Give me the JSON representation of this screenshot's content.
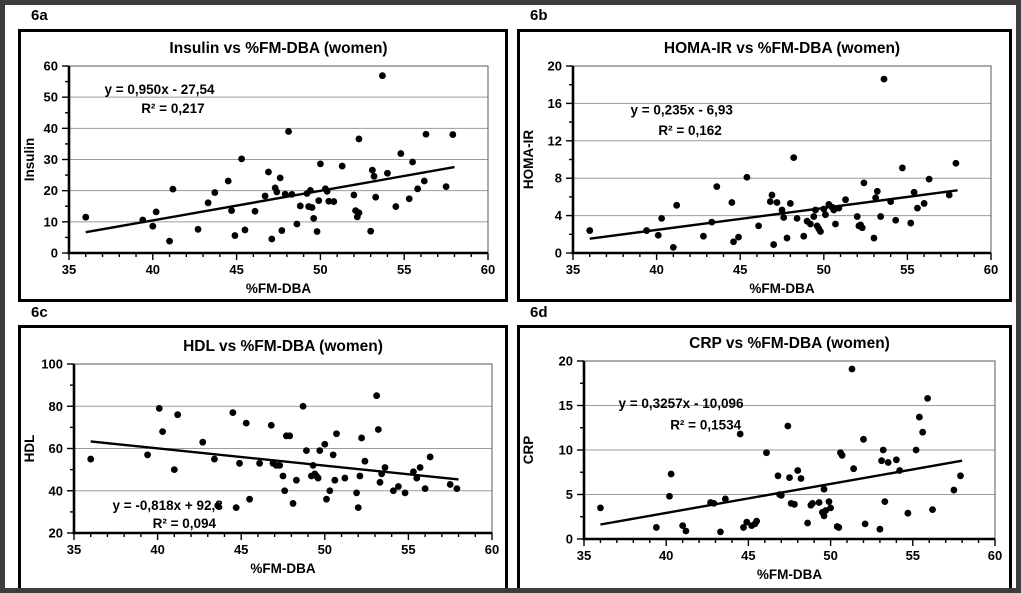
{
  "figure_name": "6",
  "chart_data": [
    {
      "type": "scatter",
      "panel_label": "6a",
      "title": "Insulin vs %FM-DBA (women)",
      "xlabel": "%FM-DBA",
      "ylabel": "Insulin",
      "xlim": [
        35,
        60
      ],
      "ylim": [
        0,
        60
      ],
      "xticks": [
        35,
        40,
        45,
        50,
        55,
        60
      ],
      "yticks": [
        0,
        10,
        20,
        30,
        40,
        50,
        60
      ],
      "x_minor_step": 1,
      "y_minor_step": 5,
      "trend": {
        "slope": 0.95,
        "intercept": -27.54,
        "x_start": 36,
        "x_end": 58
      },
      "annotations": [
        {
          "text": "y = 0,950x - 27,54",
          "x": 40.4,
          "y": 52.5
        },
        {
          "text": "R² = 0,217",
          "x": 41.2,
          "y": 46.4
        }
      ],
      "points": [
        [
          36,
          11.5
        ],
        [
          39.4,
          10.6
        ],
        [
          40,
          8.6
        ],
        [
          40.2,
          13.2
        ],
        [
          41,
          3.8
        ],
        [
          41.2,
          20.5
        ],
        [
          42.7,
          7.6
        ],
        [
          43.3,
          16.1
        ],
        [
          43.7,
          19.4
        ],
        [
          44.5,
          23.1
        ],
        [
          44.7,
          13.6
        ],
        [
          44.9,
          5.6
        ],
        [
          45.3,
          30.2
        ],
        [
          45.5,
          7.4
        ],
        [
          46.1,
          13.4
        ],
        [
          46.7,
          18.3
        ],
        [
          46.9,
          26
        ],
        [
          47.1,
          4.5
        ],
        [
          47.3,
          20.9
        ],
        [
          47.4,
          19.6
        ],
        [
          47.6,
          24.1
        ],
        [
          47.7,
          7.2
        ],
        [
          47.9,
          18.9
        ],
        [
          48.1,
          39
        ],
        [
          48.3,
          18.8
        ],
        [
          48.6,
          9.3
        ],
        [
          48.8,
          15.1
        ],
        [
          49.2,
          19.1
        ],
        [
          49.3,
          14.9
        ],
        [
          49.4,
          20.1
        ],
        [
          49.5,
          14.6
        ],
        [
          49.6,
          11.1
        ],
        [
          49.8,
          6.9
        ],
        [
          49.9,
          16.8
        ],
        [
          50,
          28.6
        ],
        [
          50.3,
          20.6
        ],
        [
          50.4,
          19.8
        ],
        [
          50.5,
          16.6
        ],
        [
          50.8,
          16.5
        ],
        [
          51.3,
          27.9
        ],
        [
          52,
          18.6
        ],
        [
          52.1,
          13.6
        ],
        [
          52.2,
          11.6
        ],
        [
          52.3,
          12.9
        ],
        [
          52.3,
          36.6
        ],
        [
          53,
          7
        ],
        [
          53.1,
          26.6
        ],
        [
          53.2,
          24.6
        ],
        [
          53.3,
          17.9
        ],
        [
          53.7,
          56.9
        ],
        [
          54,
          25.6
        ],
        [
          54.5,
          14.9
        ],
        [
          54.8,
          31.9
        ],
        [
          55.3,
          17.4
        ],
        [
          55.5,
          29.2
        ],
        [
          55.8,
          20.6
        ],
        [
          56.2,
          23.1
        ],
        [
          56.3,
          38.1
        ],
        [
          57.5,
          21.3
        ],
        [
          57.9,
          38
        ]
      ]
    },
    {
      "type": "scatter",
      "panel_label": "6b",
      "title": "HOMA-IR vs %FM-DBA (women)",
      "xlabel": "%FM-DBA",
      "ylabel": "HOMA-IR",
      "xlim": [
        35,
        60
      ],
      "ylim": [
        0,
        20
      ],
      "xticks": [
        35,
        40,
        45,
        50,
        55,
        60
      ],
      "yticks": [
        0,
        4,
        8,
        12,
        16,
        20
      ],
      "x_minor_step": 1,
      "y_minor_step": 2,
      "trend": {
        "slope": 0.235,
        "intercept": -6.93,
        "x_start": 36,
        "x_end": 58
      },
      "annotations": [
        {
          "text": "y = 0,235x - 6,93",
          "x": 41.5,
          "y": 15.3
        },
        {
          "text": "R² = 0,162",
          "x": 42,
          "y": 13.1
        }
      ],
      "points": [
        [
          36,
          2.4
        ],
        [
          39.4,
          2.4
        ],
        [
          40.1,
          1.9
        ],
        [
          40.3,
          3.7
        ],
        [
          41,
          0.6
        ],
        [
          41.2,
          5.1
        ],
        [
          42.8,
          1.8
        ],
        [
          43.3,
          3.3
        ],
        [
          43.6,
          7.1
        ],
        [
          44.5,
          5.4
        ],
        [
          44.6,
          1.2
        ],
        [
          44.9,
          1.7
        ],
        [
          45.4,
          8.1
        ],
        [
          46.1,
          2.9
        ],
        [
          46.8,
          5.5
        ],
        [
          46.9,
          6.2
        ],
        [
          47,
          0.9
        ],
        [
          47.2,
          5.4
        ],
        [
          47.5,
          4.6
        ],
        [
          47.6,
          3.8
        ],
        [
          47.8,
          1.6
        ],
        [
          48,
          5.3
        ],
        [
          48.2,
          10.2
        ],
        [
          48.4,
          3.7
        ],
        [
          48.8,
          1.8
        ],
        [
          49,
          3.4
        ],
        [
          49.2,
          3.1
        ],
        [
          49.4,
          3.9
        ],
        [
          49.5,
          4.6
        ],
        [
          49.6,
          2.9
        ],
        [
          49.7,
          2.6
        ],
        [
          49.8,
          2.3
        ],
        [
          50,
          4.7
        ],
        [
          50.1,
          4.1
        ],
        [
          50.3,
          5.2
        ],
        [
          50.5,
          4.9
        ],
        [
          50.6,
          4.6
        ],
        [
          50.7,
          3.1
        ],
        [
          50.9,
          4.8
        ],
        [
          51.3,
          5.7
        ],
        [
          52,
          3.9
        ],
        [
          52.1,
          2.9
        ],
        [
          52.2,
          3
        ],
        [
          52.3,
          2.7
        ],
        [
          52.4,
          7.5
        ],
        [
          53,
          1.6
        ],
        [
          53.1,
          5.9
        ],
        [
          53.2,
          6.6
        ],
        [
          53.4,
          3.9
        ],
        [
          53.6,
          18.6
        ],
        [
          54,
          5.5
        ],
        [
          54.3,
          3.5
        ],
        [
          54.7,
          9.1
        ],
        [
          55.2,
          3.2
        ],
        [
          55.4,
          6.5
        ],
        [
          55.6,
          4.8
        ],
        [
          56,
          5.3
        ],
        [
          56.3,
          7.9
        ],
        [
          57.5,
          6.2
        ],
        [
          57.9,
          9.6
        ]
      ]
    },
    {
      "type": "scatter",
      "panel_label": "6c",
      "title": "HDL vs %FM-DBA (women)",
      "xlabel": "%FM-DBA",
      "ylabel": "HDL",
      "xlim": [
        35,
        60
      ],
      "ylim": [
        20,
        100
      ],
      "xticks": [
        35,
        40,
        45,
        50,
        55,
        60
      ],
      "yticks": [
        20,
        40,
        60,
        80,
        100
      ],
      "x_minor_step": 1,
      "y_minor_step": 10,
      "trend": {
        "slope": -0.818,
        "intercept": 92.8,
        "x_start": 36,
        "x_end": 58
      },
      "annotations": [
        {
          "text": "y = -0,818x + 92,8",
          "x": 40.6,
          "y": 33
        },
        {
          "text": "R² = 0,094",
          "x": 41.6,
          "y": 24.5
        }
      ],
      "points": [
        [
          36,
          55
        ],
        [
          39.4,
          57
        ],
        [
          40.1,
          79
        ],
        [
          40.3,
          68
        ],
        [
          41,
          50
        ],
        [
          41.2,
          76
        ],
        [
          42.7,
          63
        ],
        [
          43.4,
          55
        ],
        [
          43.6,
          33
        ],
        [
          44.5,
          77
        ],
        [
          44.7,
          32
        ],
        [
          44.9,
          53
        ],
        [
          45.3,
          72
        ],
        [
          45.5,
          36
        ],
        [
          46.1,
          53
        ],
        [
          46.8,
          71
        ],
        [
          46.9,
          53
        ],
        [
          47.1,
          52
        ],
        [
          47.3,
          52
        ],
        [
          47.5,
          47
        ],
        [
          47.6,
          40
        ],
        [
          47.7,
          66
        ],
        [
          47.9,
          66
        ],
        [
          48.1,
          34
        ],
        [
          48.3,
          45
        ],
        [
          48.7,
          80
        ],
        [
          48.9,
          59
        ],
        [
          49.2,
          47
        ],
        [
          49.3,
          52
        ],
        [
          49.4,
          48
        ],
        [
          49.5,
          47
        ],
        [
          49.6,
          46
        ],
        [
          49.7,
          59
        ],
        [
          50,
          62
        ],
        [
          50.1,
          36
        ],
        [
          50.3,
          40
        ],
        [
          50.5,
          57
        ],
        [
          50.6,
          45
        ],
        [
          50.7,
          67
        ],
        [
          51.2,
          46
        ],
        [
          51.9,
          39
        ],
        [
          52,
          32
        ],
        [
          52.1,
          47
        ],
        [
          52.2,
          65
        ],
        [
          52.4,
          54
        ],
        [
          53.1,
          85
        ],
        [
          53.2,
          69
        ],
        [
          53.3,
          44
        ],
        [
          53.4,
          48
        ],
        [
          53.6,
          51
        ],
        [
          54.1,
          40
        ],
        [
          54.4,
          42
        ],
        [
          54.8,
          39
        ],
        [
          55.3,
          49
        ],
        [
          55.5,
          46
        ],
        [
          55.7,
          51
        ],
        [
          56,
          41
        ],
        [
          56.3,
          56
        ],
        [
          57.5,
          43
        ],
        [
          57.9,
          41
        ]
      ]
    },
    {
      "type": "scatter",
      "panel_label": "6d",
      "title": "CRP vs %FM-DBA (women)",
      "xlabel": "%FM-DBA",
      "ylabel": "CRP",
      "xlim": [
        35,
        60
      ],
      "ylim": [
        0,
        20
      ],
      "xticks": [
        35,
        40,
        45,
        50,
        55,
        60
      ],
      "yticks": [
        0,
        5,
        10,
        15,
        20
      ],
      "x_minor_step": 1,
      "y_minor_step": 2.5,
      "trend": {
        "slope": 0.3257,
        "intercept": -10.096,
        "x_start": 36,
        "x_end": 58
      },
      "annotations": [
        {
          "text": "y = 0,3257x - 10,096",
          "x": 40.9,
          "y": 15.2
        },
        {
          "text": "R² = 0,1534",
          "x": 42.4,
          "y": 12.8
        }
      ],
      "points": [
        [
          36,
          3.5
        ],
        [
          39.4,
          1.3
        ],
        [
          40.2,
          4.8
        ],
        [
          40.3,
          7.3
        ],
        [
          41,
          1.5
        ],
        [
          41.2,
          0.9
        ],
        [
          42.7,
          4.1
        ],
        [
          42.9,
          4
        ],
        [
          43.3,
          0.8
        ],
        [
          43.6,
          4.5
        ],
        [
          44.5,
          11.8
        ],
        [
          44.7,
          1.3
        ],
        [
          44.9,
          1.9
        ],
        [
          45.2,
          1.5
        ],
        [
          45.4,
          1.7
        ],
        [
          45.5,
          2
        ],
        [
          46.1,
          9.7
        ],
        [
          46.8,
          7.1
        ],
        [
          46.9,
          5
        ],
        [
          47,
          4.9
        ],
        [
          47.4,
          12.7
        ],
        [
          47.5,
          6.9
        ],
        [
          47.6,
          4
        ],
        [
          47.8,
          3.9
        ],
        [
          48,
          7.7
        ],
        [
          48.2,
          6.8
        ],
        [
          48.6,
          1.8
        ],
        [
          48.8,
          3.8
        ],
        [
          48.9,
          4
        ],
        [
          49.3,
          4.1
        ],
        [
          49.5,
          3
        ],
        [
          49.6,
          2.6
        ],
        [
          49.6,
          5.6
        ],
        [
          49.7,
          3.2
        ],
        [
          49.9,
          4.2
        ],
        [
          50,
          3.5
        ],
        [
          50.4,
          1.4
        ],
        [
          50.5,
          1.3
        ],
        [
          50.6,
          9.7
        ],
        [
          50.7,
          9.4
        ],
        [
          51.3,
          19.1
        ],
        [
          51.4,
          7.9
        ],
        [
          52,
          11.2
        ],
        [
          52.1,
          1.7
        ],
        [
          53,
          1.1
        ],
        [
          53.1,
          8.8
        ],
        [
          53.2,
          10
        ],
        [
          53.3,
          4.2
        ],
        [
          53.5,
          8.6
        ],
        [
          54,
          8.9
        ],
        [
          54.2,
          7.7
        ],
        [
          54.7,
          2.9
        ],
        [
          55.2,
          10
        ],
        [
          55.4,
          13.7
        ],
        [
          55.6,
          12
        ],
        [
          55.9,
          15.8
        ],
        [
          56.2,
          3.3
        ],
        [
          57.5,
          5.5
        ],
        [
          57.9,
          7.1
        ]
      ]
    }
  ]
}
